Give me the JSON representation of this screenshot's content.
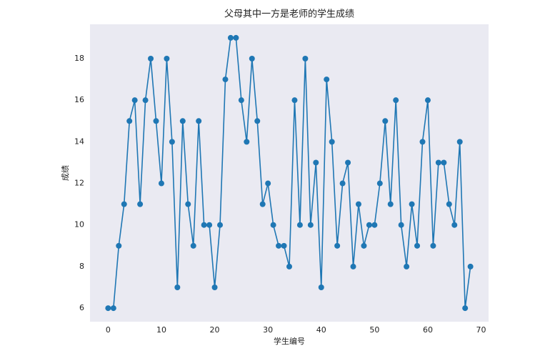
{
  "chart_data": {
    "type": "line",
    "title": "父母其中一方是老师的学生成绩",
    "xlabel": "学生编号",
    "ylabel": "成绩",
    "x": [
      0,
      1,
      2,
      3,
      4,
      5,
      6,
      7,
      8,
      9,
      10,
      11,
      12,
      13,
      14,
      15,
      16,
      17,
      18,
      19,
      20,
      21,
      22,
      23,
      24,
      25,
      26,
      27,
      28,
      29,
      30,
      31,
      32,
      33,
      34,
      35,
      36,
      37,
      38,
      39,
      40,
      41,
      42,
      43,
      44,
      45,
      46,
      47,
      48,
      49,
      50,
      51,
      52,
      53,
      54,
      55,
      56,
      57,
      58,
      59,
      60,
      61,
      62,
      63,
      64,
      65,
      66,
      67,
      68
    ],
    "series": [
      {
        "name": "成绩",
        "color": "#1f77b4",
        "values": [
          6,
          6,
          9,
          11,
          15,
          16,
          11,
          16,
          18,
          15,
          12,
          18,
          14,
          7,
          15,
          11,
          9,
          15,
          10,
          10,
          7,
          10,
          17,
          19,
          19,
          16,
          14,
          18,
          15,
          11,
          12,
          10,
          9,
          9,
          8,
          16,
          10,
          18,
          10,
          13,
          7,
          17,
          14,
          9,
          12,
          13,
          8,
          11,
          9,
          10,
          10,
          12,
          15,
          11,
          16,
          10,
          8,
          11,
          9,
          14,
          16,
          9,
          13,
          13,
          11,
          10,
          14,
          6,
          8
        ]
      }
    ],
    "xlim": [
      -3.4,
      71.4
    ],
    "xticks": [
      0,
      10,
      20,
      30,
      40,
      50,
      60,
      70
    ],
    "ylim": [
      5.35,
      19.65
    ],
    "yticks": [
      6,
      8,
      10,
      12,
      14,
      16,
      18
    ],
    "grid": false,
    "background": "#eaeaf2"
  }
}
